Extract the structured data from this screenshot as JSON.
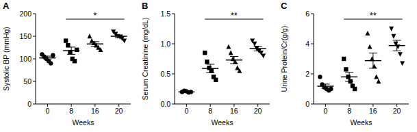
{
  "chart_data": [
    {
      "type": "scatter",
      "title": "A",
      "x_label": "Weeks",
      "y_label": "Systolic BP (mmHg)",
      "ylim": [
        0,
        200
      ],
      "yticks": [
        0,
        50,
        100,
        150,
        200
      ],
      "groups": [
        {
          "category": "0",
          "marker": "circle",
          "values": [
            110,
            105,
            100,
            95,
            90,
            108
          ],
          "mean": 102,
          "sem": 4
        },
        {
          "category": "8",
          "marker": "square",
          "values": [
            140,
            130,
            115,
            100,
            95,
            120
          ],
          "mean": 118,
          "sem": 8
        },
        {
          "category": "16",
          "marker": "triangle",
          "values": [
            150,
            140,
            135,
            130,
            125,
            120
          ],
          "mean": 133,
          "sem": 5
        },
        {
          "category": "20",
          "marker": "triangle-down",
          "values": [
            160,
            155,
            150,
            148,
            145,
            140
          ],
          "mean": 150,
          "sem": 3
        }
      ],
      "significance": {
        "label": "*",
        "from": "8",
        "to": "20"
      }
    },
    {
      "type": "scatter",
      "title": "B",
      "x_label": "Weeks",
      "y_label": "Serum Creatinine (mg/dL)",
      "ylim": [
        0,
        1.5
      ],
      "yticks": [
        {
          "value": 0,
          "label": "0.0"
        },
        {
          "value": 0.5,
          "label": "0.5"
        },
        {
          "value": 1,
          "label": "1.0"
        },
        {
          "value": 1.5,
          "label": "1.5"
        }
      ],
      "groups": [
        {
          "category": "0",
          "marker": "circle",
          "values": [
            0.2,
            0.22,
            0.21,
            0.19,
            0.2
          ],
          "mean": 0.2,
          "sem": 0.01
        },
        {
          "category": "8",
          "marker": "square",
          "values": [
            0.85,
            0.7,
            0.6,
            0.55,
            0.45,
            0.4
          ],
          "mean": 0.59,
          "sem": 0.07
        },
        {
          "category": "16",
          "marker": "triangle",
          "values": [
            0.95,
            0.85,
            0.75,
            0.7,
            0.6,
            0.55
          ],
          "mean": 0.73,
          "sem": 0.06
        },
        {
          "category": "20",
          "marker": "triangle-down",
          "values": [
            1.05,
            1.0,
            0.92,
            0.88,
            0.85,
            0.8
          ],
          "mean": 0.92,
          "sem": 0.04
        }
      ],
      "significance": {
        "label": "**",
        "from": "8",
        "to": "20"
      }
    },
    {
      "type": "scatter",
      "title": "C",
      "x_label": "Weeks",
      "y_label": "Urine Protein/Cr(g/g)",
      "ylim": [
        0,
        6
      ],
      "yticks": [
        0,
        2,
        4,
        6
      ],
      "groups": [
        {
          "category": "0",
          "marker": "circle",
          "values": [
            1.8,
            1.3,
            1.1,
            1.0,
            0.9,
            1.0
          ],
          "mean": 1.18,
          "sem": 0.14
        },
        {
          "category": "8",
          "marker": "square",
          "values": [
            3.0,
            2.3,
            1.8,
            1.5,
            1.2,
            1.0
          ],
          "mean": 1.8,
          "sem": 0.3
        },
        {
          "category": "16",
          "marker": "triangle",
          "values": [
            4.7,
            3.8,
            3.0,
            2.5,
            1.8,
            1.5
          ],
          "mean": 2.88,
          "sem": 0.5
        },
        {
          "category": "20",
          "marker": "triangle-down",
          "values": [
            5.0,
            4.5,
            4.0,
            3.8,
            3.3,
            2.7
          ],
          "mean": 3.88,
          "sem": 0.35
        }
      ],
      "significance": {
        "label": "**",
        "from": "8",
        "to": "20"
      }
    }
  ]
}
